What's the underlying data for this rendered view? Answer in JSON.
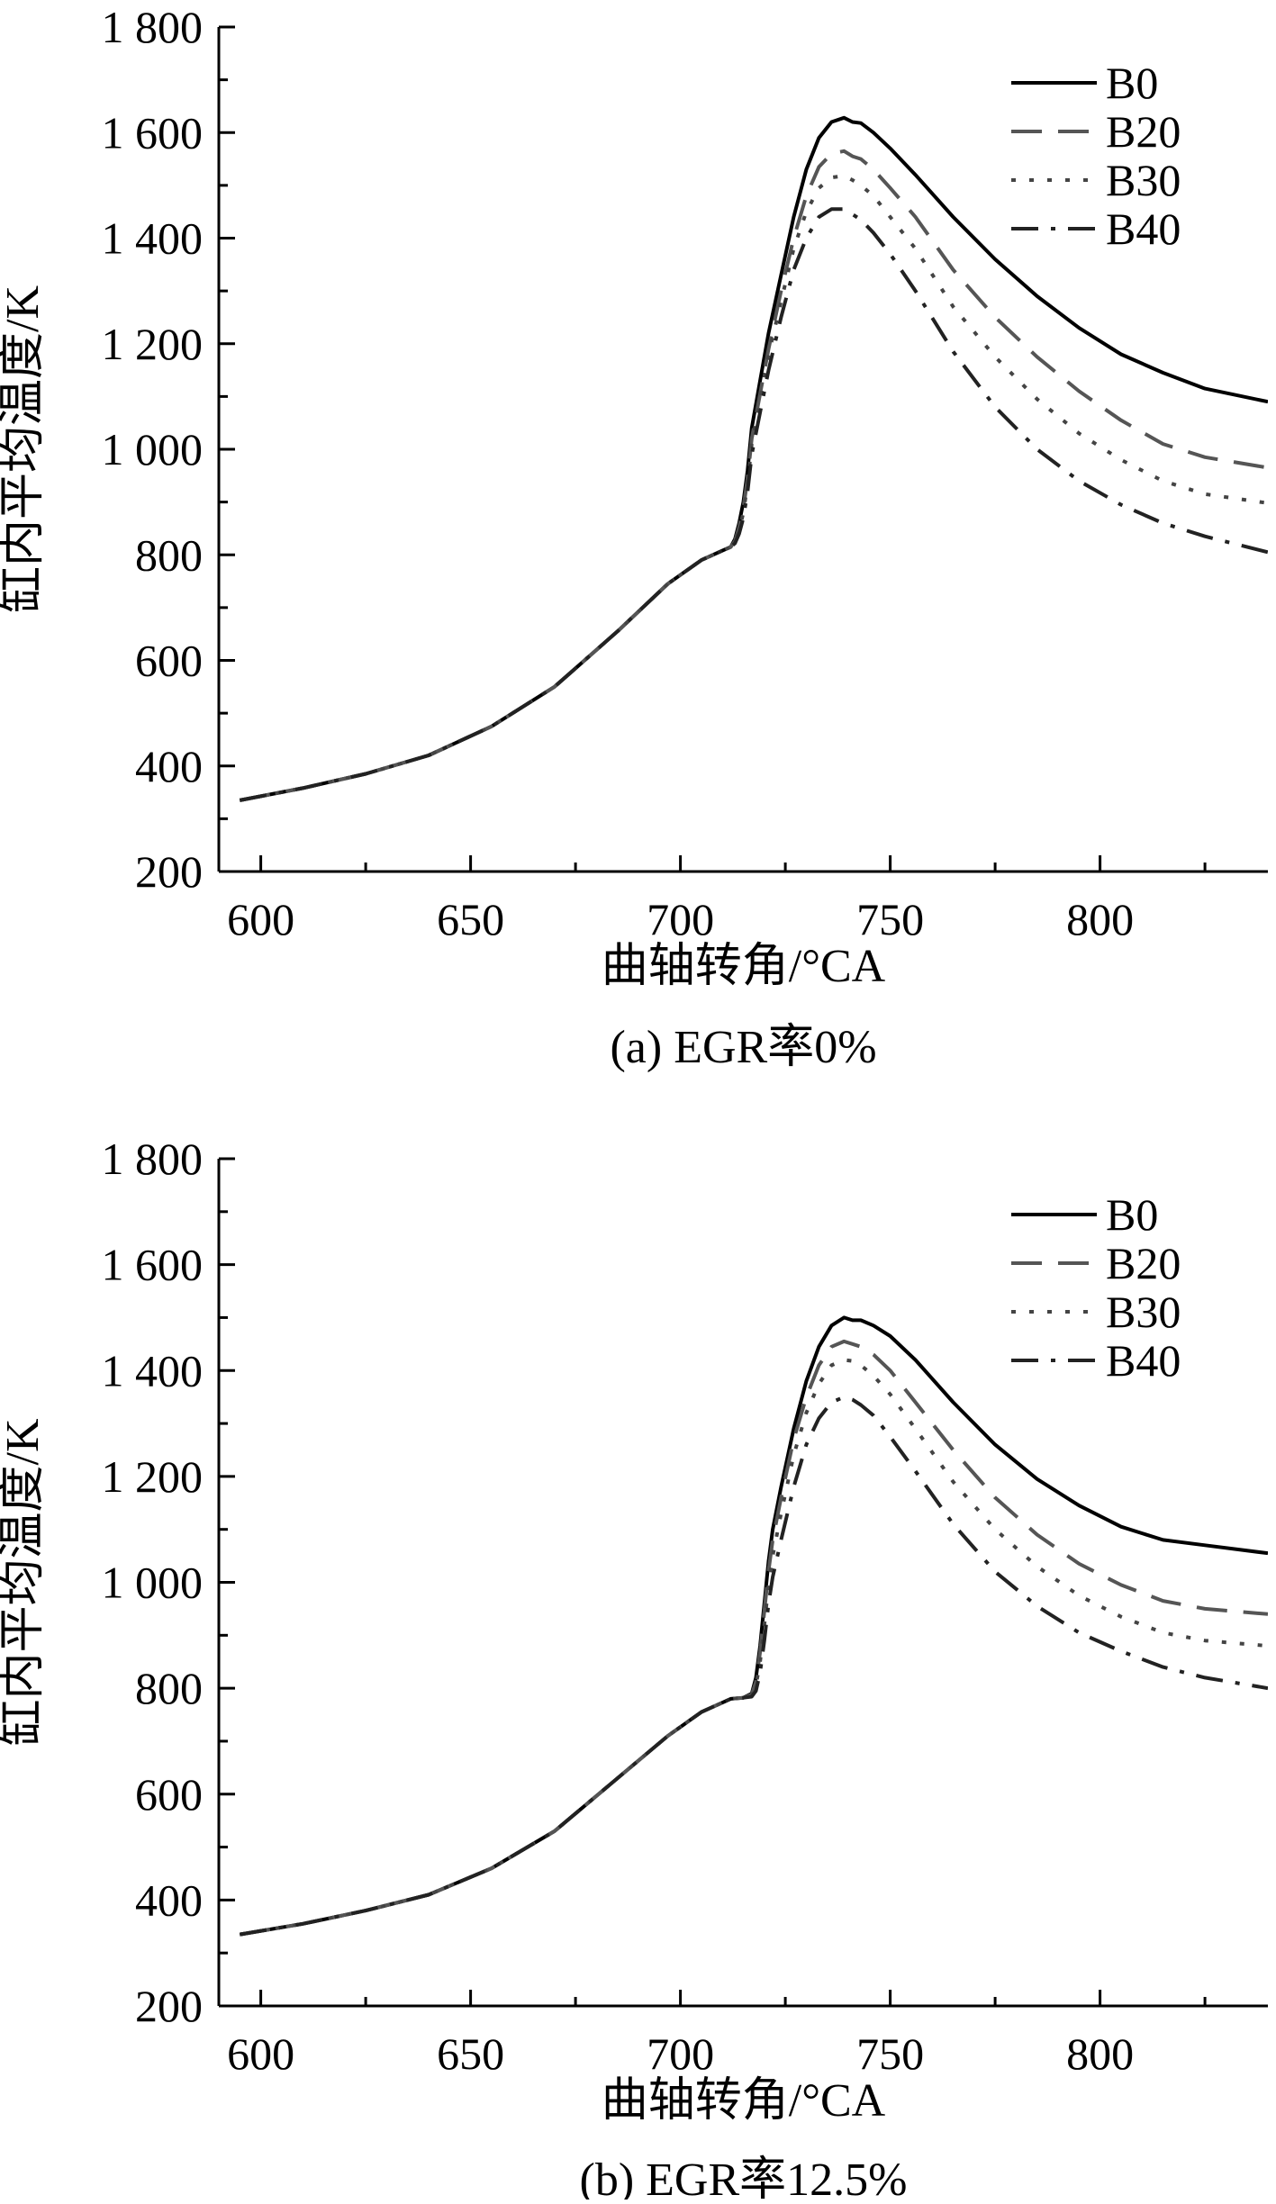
{
  "chart_data": [
    {
      "type": "line",
      "caption": "(a) EGR率0%",
      "xlabel": "曲轴转角/°CA",
      "ylabel": "缸内平均温度/K",
      "xlim": [
        590,
        840
      ],
      "ylim": [
        200,
        1800
      ],
      "xticks": [
        600,
        650,
        700,
        750,
        800
      ],
      "xtick_labels": [
        "600",
        "650",
        "700",
        "750",
        "800"
      ],
      "yticks": [
        200,
        400,
        600,
        800,
        1000,
        1200,
        1400,
        1600,
        1800
      ],
      "ytick_labels": [
        "200",
        "400",
        "600",
        "800",
        "1 000",
        "1 200",
        "1 400",
        "1 600",
        "1 800"
      ],
      "legend_position": "top-right",
      "series": [
        {
          "name": "B0",
          "style": "solid",
          "color": "#000000",
          "x": [
            595,
            610,
            625,
            640,
            655,
            670,
            685,
            697,
            705,
            710,
            712,
            713,
            714,
            715,
            716,
            717,
            719,
            721,
            724,
            727,
            730,
            733,
            736,
            739,
            741,
            743,
            746,
            750,
            756,
            765,
            775,
            785,
            795,
            805,
            815,
            825,
            840
          ],
          "y": [
            335,
            358,
            385,
            420,
            475,
            550,
            655,
            745,
            790,
            808,
            815,
            830,
            860,
            900,
            960,
            1040,
            1130,
            1220,
            1330,
            1440,
            1530,
            1590,
            1620,
            1628,
            1620,
            1618,
            1600,
            1570,
            1520,
            1440,
            1360,
            1290,
            1230,
            1180,
            1145,
            1115,
            1090
          ]
        },
        {
          "name": "B20",
          "style": "dashed",
          "color": "#555555",
          "x": [
            595,
            610,
            625,
            640,
            655,
            670,
            685,
            697,
            705,
            710,
            712,
            713,
            714,
            715,
            716,
            717,
            719,
            721,
            724,
            727,
            730,
            733,
            736,
            739,
            741,
            743,
            746,
            750,
            756,
            765,
            775,
            785,
            795,
            805,
            815,
            825,
            840
          ],
          "y": [
            335,
            358,
            385,
            420,
            475,
            550,
            655,
            745,
            790,
            808,
            815,
            826,
            852,
            888,
            945,
            1020,
            1105,
            1190,
            1300,
            1400,
            1480,
            1535,
            1560,
            1565,
            1555,
            1550,
            1530,
            1495,
            1440,
            1340,
            1250,
            1175,
            1110,
            1055,
            1010,
            985,
            965
          ]
        },
        {
          "name": "B30",
          "style": "dotted",
          "color": "#444444",
          "x": [
            595,
            610,
            625,
            640,
            655,
            670,
            685,
            697,
            705,
            710,
            712,
            713,
            714,
            715,
            716,
            717,
            719,
            721,
            724,
            727,
            730,
            733,
            736,
            739,
            741,
            743,
            746,
            750,
            756,
            765,
            775,
            785,
            795,
            805,
            815,
            825,
            840
          ],
          "y": [
            335,
            358,
            385,
            420,
            475,
            550,
            655,
            745,
            790,
            808,
            815,
            824,
            846,
            880,
            935,
            1010,
            1095,
            1180,
            1280,
            1380,
            1450,
            1495,
            1515,
            1518,
            1510,
            1500,
            1480,
            1440,
            1380,
            1270,
            1175,
            1095,
            1030,
            980,
            940,
            915,
            898
          ]
        },
        {
          "name": "B40",
          "style": "dashdot",
          "color": "#222222",
          "x": [
            595,
            610,
            625,
            640,
            655,
            670,
            685,
            697,
            705,
            710,
            712,
            713,
            714,
            715,
            716,
            717,
            719,
            721,
            724,
            727,
            730,
            733,
            736,
            739,
            741,
            743,
            746,
            750,
            756,
            765,
            775,
            785,
            795,
            805,
            815,
            825,
            840
          ],
          "y": [
            335,
            358,
            385,
            420,
            475,
            550,
            655,
            745,
            790,
            808,
            815,
            822,
            840,
            870,
            920,
            990,
            1070,
            1150,
            1250,
            1340,
            1400,
            1440,
            1455,
            1455,
            1445,
            1435,
            1410,
            1370,
            1300,
            1185,
            1080,
            1000,
            940,
            895,
            860,
            835,
            805
          ]
        }
      ]
    },
    {
      "type": "line",
      "caption": "(b) EGR率12.5%",
      "xlabel": "曲轴转角/°CA",
      "ylabel": "缸内平均温度/K",
      "xlim": [
        590,
        840
      ],
      "ylim": [
        200,
        1800
      ],
      "xticks": [
        600,
        650,
        700,
        750,
        800
      ],
      "xtick_labels": [
        "600",
        "650",
        "700",
        "750",
        "800"
      ],
      "yticks": [
        200,
        400,
        600,
        800,
        1000,
        1200,
        1400,
        1600,
        1800
      ],
      "ytick_labels": [
        "200",
        "400",
        "600",
        "800",
        "1 000",
        "1 200",
        "1 400",
        "1 600",
        "1 800"
      ],
      "legend_position": "top-right",
      "series": [
        {
          "name": "B0",
          "style": "solid",
          "color": "#000000",
          "x": [
            595,
            610,
            625,
            640,
            655,
            670,
            685,
            697,
            705,
            712,
            715,
            717,
            718,
            719,
            720,
            721,
            722,
            724,
            727,
            730,
            733,
            736,
            739,
            741,
            743,
            746,
            750,
            756,
            765,
            775,
            785,
            795,
            805,
            815,
            825,
            840
          ],
          "y": [
            335,
            355,
            380,
            410,
            460,
            530,
            630,
            710,
            755,
            780,
            782,
            790,
            820,
            880,
            960,
            1040,
            1100,
            1180,
            1290,
            1380,
            1445,
            1485,
            1500,
            1495,
            1495,
            1485,
            1465,
            1420,
            1340,
            1260,
            1195,
            1145,
            1105,
            1080,
            1070,
            1055
          ]
        },
        {
          "name": "B20",
          "style": "dashed",
          "color": "#555555",
          "x": [
            595,
            610,
            625,
            640,
            655,
            670,
            685,
            697,
            705,
            712,
            715,
            717,
            718,
            719,
            720,
            721,
            722,
            724,
            727,
            730,
            733,
            736,
            739,
            741,
            743,
            746,
            750,
            756,
            765,
            775,
            785,
            795,
            805,
            815,
            825,
            840
          ],
          "y": [
            335,
            355,
            380,
            410,
            460,
            530,
            630,
            710,
            755,
            780,
            782,
            788,
            812,
            868,
            945,
            1022,
            1080,
            1160,
            1270,
            1350,
            1410,
            1445,
            1455,
            1450,
            1445,
            1430,
            1400,
            1340,
            1250,
            1160,
            1090,
            1035,
            995,
            965,
            950,
            940
          ]
        },
        {
          "name": "B30",
          "style": "dotted",
          "color": "#444444",
          "x": [
            595,
            610,
            625,
            640,
            655,
            670,
            685,
            697,
            705,
            712,
            715,
            717,
            718,
            719,
            720,
            721,
            722,
            724,
            727,
            730,
            733,
            736,
            739,
            741,
            743,
            746,
            750,
            756,
            765,
            775,
            785,
            795,
            805,
            815,
            825,
            840
          ],
          "y": [
            335,
            355,
            380,
            410,
            460,
            530,
            630,
            710,
            755,
            780,
            782,
            786,
            805,
            850,
            920,
            995,
            1050,
            1130,
            1240,
            1320,
            1375,
            1410,
            1420,
            1418,
            1410,
            1390,
            1355,
            1290,
            1190,
            1100,
            1030,
            975,
            935,
            905,
            890,
            880
          ]
        },
        {
          "name": "B40",
          "style": "dashdot",
          "color": "#222222",
          "x": [
            595,
            610,
            625,
            640,
            655,
            670,
            685,
            697,
            705,
            712,
            715,
            717,
            718,
            719,
            720,
            721,
            722,
            724,
            727,
            730,
            733,
            736,
            739,
            741,
            743,
            746,
            750,
            756,
            765,
            775,
            785,
            795,
            805,
            815,
            825,
            840
          ],
          "y": [
            335,
            355,
            380,
            410,
            460,
            530,
            630,
            710,
            755,
            780,
            782,
            784,
            795,
            830,
            890,
            960,
            1010,
            1080,
            1180,
            1260,
            1310,
            1340,
            1350,
            1345,
            1335,
            1315,
            1275,
            1210,
            1110,
            1020,
            955,
            905,
            870,
            840,
            820,
            800
          ]
        }
      ]
    }
  ]
}
